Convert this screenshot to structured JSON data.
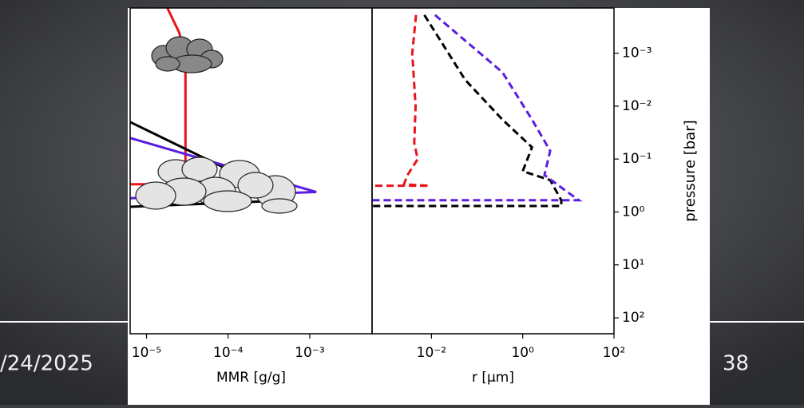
{
  "footer": {
    "date": "/24/2025",
    "page": "38"
  },
  "chart_data": [
    {
      "type": "line",
      "xlabel": "MMR [g/g]",
      "x_log": true,
      "y_log": true,
      "y_inverted": true,
      "xlim": [
        6.3e-06,
        0.0058
      ],
      "ylim": [
        0.00014,
        200
      ],
      "xticks": [
        {
          "value": 1e-05,
          "label": "10⁻⁵"
        },
        {
          "value": 0.0001,
          "label": "10⁻⁴"
        },
        {
          "value": 0.001,
          "label": "10⁻³"
        }
      ],
      "series": [
        {
          "color": "#e8141b",
          "style": "solid",
          "x": [
            1.8e-05,
            2.5e-05,
            3e-05,
            3e-05,
            6.3e-06
          ],
          "values": [
            0.00014,
            0.0004,
            0.001,
            0.3,
            0.3
          ]
        },
        {
          "color": "#000000",
          "style": "solid",
          "x": [
            6.3e-06,
            5.4e-05,
            0.0006,
            6.3e-06
          ],
          "values": [
            0.02,
            0.1,
            0.6,
            0.8
          ]
        },
        {
          "color": "#5a1ee0",
          "style": "solid",
          "x": [
            6.3e-06,
            0.0012,
            6.3e-06
          ],
          "values": [
            0.04,
            0.42,
            0.55
          ]
        }
      ]
    },
    {
      "type": "line",
      "xlabel": "r [μm]",
      "ylabel": "pressure [bar]",
      "x_log": true,
      "y_log": true,
      "y_inverted": true,
      "xlim": [
        0.0005,
        100
      ],
      "ylim": [
        0.00014,
        200
      ],
      "xticks": [
        {
          "value": 0.01,
          "label": "10⁻²"
        },
        {
          "value": 1,
          "label": "10⁰"
        },
        {
          "value": 100,
          "label": "10²"
        }
      ],
      "yticks": [
        {
          "value": 0.001,
          "label": "10⁻³"
        },
        {
          "value": 0.01,
          "label": "10⁻²"
        },
        {
          "value": 0.1,
          "label": "10⁻¹"
        },
        {
          "value": 1,
          "label": "10⁰"
        },
        {
          "value": 10,
          "label": "10¹"
        },
        {
          "value": 100,
          "label": "10²"
        }
      ],
      "series": [
        {
          "color": "#e8141b",
          "style": "dashed",
          "x": [
            0.0046,
            0.0038,
            0.0045,
            0.0042,
            0.005,
            0.003,
            0.0025,
            0.009,
            0.0005
          ],
          "values": [
            0.00019,
            0.001,
            0.01,
            0.05,
            0.1,
            0.2,
            0.3,
            0.32,
            0.32
          ]
        },
        {
          "color": "#000000",
          "style": "dashed",
          "x": [
            0.007,
            0.055,
            0.36,
            1.6,
            1,
            4,
            7,
            7,
            0.0005
          ],
          "values": [
            0.00019,
            0.0032,
            0.018,
            0.06,
            0.17,
            0.25,
            0.6,
            0.77,
            0.77
          ]
        },
        {
          "color": "#5a1ee0",
          "style": "dashed",
          "x": [
            0.012,
            0.36,
            1.6,
            4,
            3,
            7.8,
            17,
            0.0005
          ],
          "values": [
            0.00019,
            0.0023,
            0.018,
            0.07,
            0.2,
            0.37,
            0.6,
            0.6
          ]
        }
      ]
    }
  ]
}
